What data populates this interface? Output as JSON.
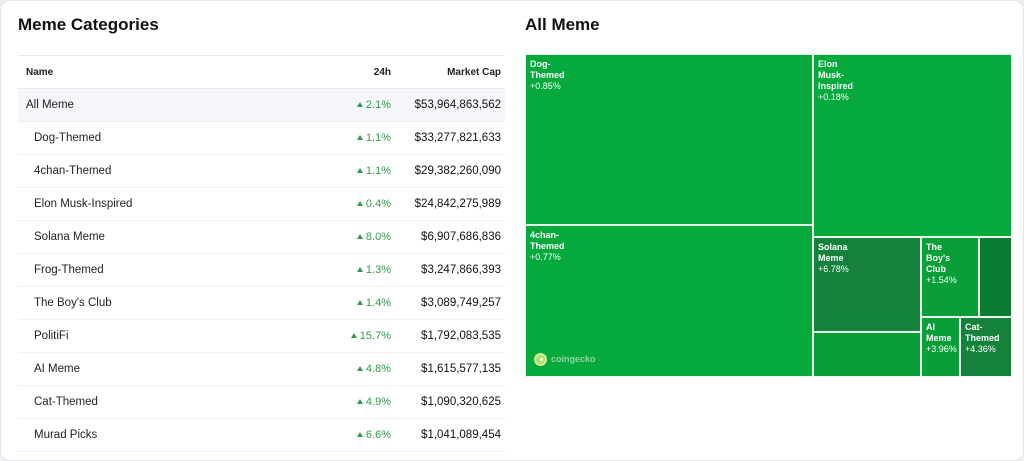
{
  "left": {
    "title": "Meme Categories",
    "headers": {
      "name": "Name",
      "change": "24h",
      "cap": "Market Cap"
    },
    "rows": [
      {
        "name": "All Meme",
        "change": "2.1%",
        "cap": "$53,964,863,562"
      },
      {
        "name": "Dog-Themed",
        "change": "1.1%",
        "cap": "$33,277,821,633"
      },
      {
        "name": "4chan-Themed",
        "change": "1.1%",
        "cap": "$29,382,260,090"
      },
      {
        "name": "Elon Musk-Inspired",
        "change": "0.4%",
        "cap": "$24,842,275,989"
      },
      {
        "name": "Solana Meme",
        "change": "8.0%",
        "cap": "$6,907,686,836"
      },
      {
        "name": "Frog-Themed",
        "change": "1.3%",
        "cap": "$3,247,866,393"
      },
      {
        "name": "The Boy's Club",
        "change": "1.4%",
        "cap": "$3,089,749,257"
      },
      {
        "name": "PolitiFi",
        "change": "15.7%",
        "cap": "$1,792,083,535"
      },
      {
        "name": "AI Meme",
        "change": "4.8%",
        "cap": "$1,615,577,135"
      },
      {
        "name": "Cat-Themed",
        "change": "4.9%",
        "cap": "$1,090,320,625"
      },
      {
        "name": "Murad Picks",
        "change": "6.6%",
        "cap": "$1,041,089,454"
      }
    ]
  },
  "right": {
    "title": "All Meme",
    "tiles": [
      {
        "name": "Dog-\nThemed",
        "change": "+0.85%"
      },
      {
        "name": "Elon\nMusk-\nInspired",
        "change": "+0.18%"
      },
      {
        "name": "4chan-\nThemed",
        "change": "+0.77%"
      },
      {
        "name": "Solana\nMeme",
        "change": "+6.78%"
      },
      {
        "name": "The\nBoy's\nClub",
        "change": "+1.54%"
      },
      {
        "name": "AI\nMeme",
        "change": "+3.96%"
      },
      {
        "name": "Cat-\nThemed",
        "change": "+4.36%"
      },
      {
        "name": "",
        "change": ""
      },
      {
        "name": "",
        "change": ""
      }
    ],
    "watermark": "coingecko",
    "colors": {
      "up": "#2f9e44",
      "tile_light": "#06a93c",
      "tile_mid": "#0a9e38",
      "tile_dark": "#14823a"
    }
  }
}
